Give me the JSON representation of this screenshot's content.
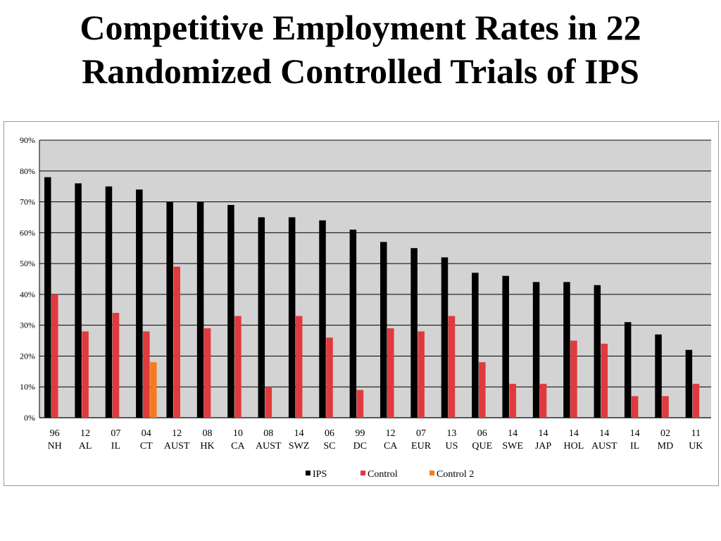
{
  "title_lines": [
    "Competitive Employment Rates in 22",
    "Randomized Controlled Trials of IPS"
  ],
  "chart_data": {
    "type": "bar",
    "title": "Competitive Employment Rates in 22 Randomized Controlled Trials of IPS",
    "ylim": [
      0,
      90
    ],
    "yticks": [
      "0%",
      "10%",
      "20%",
      "30%",
      "40%",
      "50%",
      "60%",
      "70%",
      "80%",
      "90%"
    ],
    "grid": true,
    "legend": "bottom",
    "categories": [
      [
        "96",
        "NH"
      ],
      [
        "12",
        "AL"
      ],
      [
        "07",
        "IL"
      ],
      [
        "04",
        "CT"
      ],
      [
        "12",
        "AUST"
      ],
      [
        "08",
        "HK"
      ],
      [
        "10",
        "CA"
      ],
      [
        "08",
        "AUST"
      ],
      [
        "14",
        "SWZ"
      ],
      [
        "06",
        "SC"
      ],
      [
        "99",
        "DC"
      ],
      [
        "12",
        "CA"
      ],
      [
        "07",
        "EUR"
      ],
      [
        "13",
        "US"
      ],
      [
        "06",
        "QUE"
      ],
      [
        "14",
        "SWE"
      ],
      [
        "14",
        "JAP"
      ],
      [
        "14",
        "HOL"
      ],
      [
        "14",
        "AUST"
      ],
      [
        "14",
        "IL"
      ],
      [
        "02",
        "MD"
      ],
      [
        "11",
        "UK"
      ]
    ],
    "series": [
      {
        "name": "IPS",
        "color": "#000000",
        "values": [
          78,
          76,
          75,
          74,
          70,
          70,
          69,
          65,
          65,
          64,
          61,
          57,
          55,
          52,
          47,
          46,
          44,
          44,
          43,
          31,
          27,
          22
        ]
      },
      {
        "name": "Control",
        "color": "#e03a3e",
        "values": [
          40,
          28,
          34,
          28,
          49,
          29,
          33,
          10,
          33,
          26,
          9,
          29,
          28,
          33,
          18,
          11,
          11,
          25,
          24,
          7,
          7,
          11
        ]
      },
      {
        "name": "Control 2",
        "color": "#f47b20",
        "values": [
          null,
          null,
          null,
          18,
          null,
          null,
          null,
          null,
          null,
          null,
          null,
          null,
          null,
          null,
          null,
          null,
          null,
          null,
          null,
          null,
          null,
          null
        ]
      }
    ]
  }
}
